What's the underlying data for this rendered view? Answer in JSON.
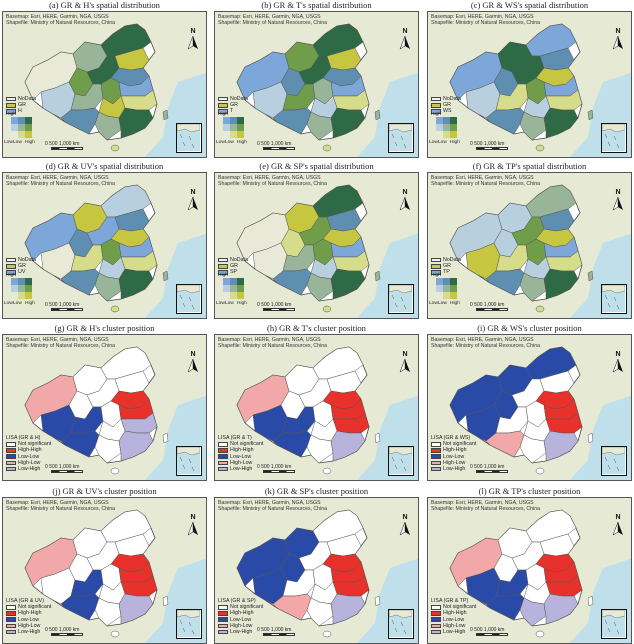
{
  "credit": {
    "line1": "Basemap: Esri, HERE, Garmin, NGA, USGS",
    "line2": "Shapefile: Ministry of Natural Resources, China"
  },
  "north_label": "N",
  "scale_label": "0  500 1,000 km",
  "bivariate_labels": {
    "high": "High",
    "low_y": "Low",
    "low_x": "Low",
    "high_x": "High"
  },
  "panels": [
    {
      "id": "a",
      "title": "(a) GR & H's spatial distribution",
      "kind": "bivariate",
      "legend": [
        {
          "label": "NoData",
          "color": "#f2f2f2"
        },
        {
          "label": "GR",
          "color": "#c8c84a"
        },
        {
          "label": "H",
          "color": "#7fa8d6"
        }
      ]
    },
    {
      "id": "b",
      "title": "(b) GR & T's spatial distribution",
      "kind": "bivariate",
      "legend": [
        {
          "label": "NoData",
          "color": "#f2f2f2"
        },
        {
          "label": "GR",
          "color": "#c8c84a"
        },
        {
          "label": "T",
          "color": "#7fa8d6"
        }
      ]
    },
    {
      "id": "c",
      "title": "(c) GR & WS's spatial distribution",
      "kind": "bivariate",
      "legend": [
        {
          "label": "NoData",
          "color": "#f2f2f2"
        },
        {
          "label": "GR",
          "color": "#c8c84a"
        },
        {
          "label": "WS",
          "color": "#7fa8d6"
        }
      ]
    },
    {
      "id": "d",
      "title": "(d) GR & UV's spatial distribution",
      "kind": "bivariate",
      "legend": [
        {
          "label": "NoData",
          "color": "#f2f2f2"
        },
        {
          "label": "GR",
          "color": "#c8c84a"
        },
        {
          "label": "UV",
          "color": "#7fa8d6"
        }
      ]
    },
    {
      "id": "e",
      "title": "(e) GR & SP's spatial distribution",
      "kind": "bivariate",
      "legend": [
        {
          "label": "NoData",
          "color": "#f2f2f2"
        },
        {
          "label": "GR",
          "color": "#c8c84a"
        },
        {
          "label": "SP",
          "color": "#7fa8d6"
        }
      ]
    },
    {
      "id": "f",
      "title": "(f) GR & TP's spatial distribution",
      "kind": "bivariate",
      "legend": [
        {
          "label": "NoData",
          "color": "#f2f2f2"
        },
        {
          "label": "GR",
          "color": "#c8c84a"
        },
        {
          "label": "TP",
          "color": "#7fa8d6"
        }
      ]
    },
    {
      "id": "g",
      "title": "(g) GR & H's cluster position",
      "kind": "cluster",
      "lisa_title": "LISA (GR & H)"
    },
    {
      "id": "h",
      "title": "(h) GR & T's cluster position",
      "kind": "cluster",
      "lisa_title": "LISA (GR & T)"
    },
    {
      "id": "i",
      "title": "(i) GR & WS's cluster position",
      "kind": "cluster",
      "lisa_title": "LISA (GR & WS)"
    },
    {
      "id": "j",
      "title": "(j) GR & UV's cluster position",
      "kind": "cluster",
      "lisa_title": "LISA (GR & UV)"
    },
    {
      "id": "k",
      "title": "(k) GR & SP's cluster position",
      "kind": "cluster",
      "lisa_title": "LISA (GR & SP)"
    },
    {
      "id": "l",
      "title": "(l) GR & TP's cluster position",
      "kind": "cluster",
      "lisa_title": "LISA (GR & TP)"
    }
  ],
  "lisa_legend": [
    {
      "label": "Not significant",
      "color": "#ffffff"
    },
    {
      "label": "High-High",
      "color": "#e8312a"
    },
    {
      "label": "Low-Low",
      "color": "#2a4aa8"
    },
    {
      "label": "High-Low",
      "color": "#f2a7a8"
    },
    {
      "label": "Low-High",
      "color": "#b7b3dc"
    }
  ],
  "bivariate_palette": [
    "#e8ead7",
    "#d5dd8a",
    "#c7c640",
    "#b7cfdf",
    "#98b59a",
    "#6f9d4a",
    "#7da7d8",
    "#5f8fb0",
    "#2e6a45"
  ],
  "colors": {
    "ocean": "#bfe0ea",
    "land": "#e6ead5",
    "border": "#444444"
  }
}
